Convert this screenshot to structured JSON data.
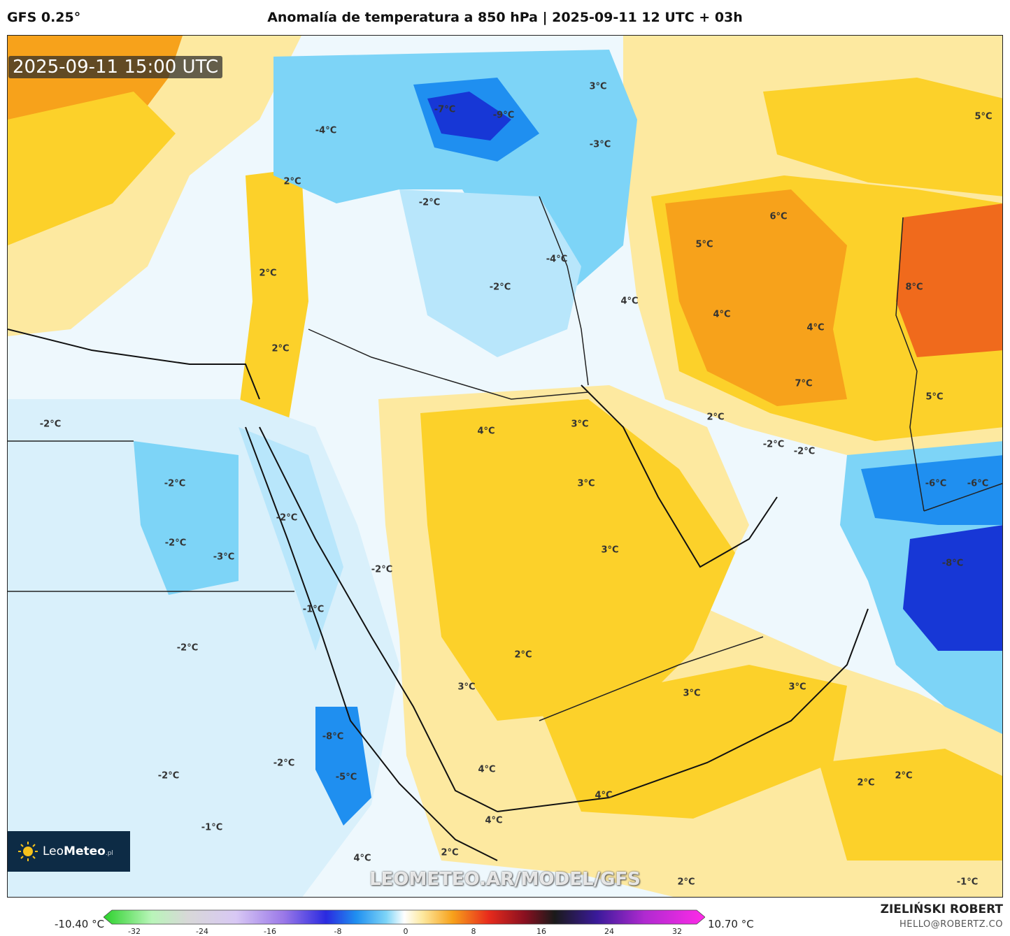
{
  "header": {
    "model": "GFS 0.25°",
    "title": "Anomalía de temperatura a 850 hPa | 2025-09-11 12 UTC + 03h"
  },
  "map": {
    "valid_time": "2025-09-11 15:00 UTC",
    "watermark": "LEOMETEO.AR/MODEL/GFS",
    "labels": [
      {
        "text": "-7°C"
      },
      {
        "text": "-9°C"
      },
      {
        "text": "-4°C"
      },
      {
        "text": "3°C"
      },
      {
        "text": "-3°C"
      },
      {
        "text": "5°C"
      },
      {
        "text": "2°C"
      },
      {
        "text": "-2°C"
      },
      {
        "text": "6°C"
      },
      {
        "text": "5°C"
      },
      {
        "text": "2°C"
      },
      {
        "text": "-4°C"
      },
      {
        "text": "-2°C"
      },
      {
        "text": "4°C"
      },
      {
        "text": "8°C"
      },
      {
        "text": "4°C"
      },
      {
        "text": "4°C"
      },
      {
        "text": "2°C"
      },
      {
        "text": "7°C"
      },
      {
        "text": "5°C"
      },
      {
        "text": "-2°C"
      },
      {
        "text": "4°C"
      },
      {
        "text": "3°C"
      },
      {
        "text": "2°C"
      },
      {
        "text": "-2°C"
      },
      {
        "text": "-2°C"
      },
      {
        "text": "3°C"
      },
      {
        "text": "-6°C"
      },
      {
        "text": "-6°C"
      },
      {
        "text": "-2°C"
      },
      {
        "text": "-2°C"
      },
      {
        "text": "-2°C"
      },
      {
        "text": "-3°C"
      },
      {
        "text": "3°C"
      },
      {
        "text": "-8°C"
      },
      {
        "text": "-2°C"
      },
      {
        "text": "-1°C"
      },
      {
        "text": "-2°C"
      },
      {
        "text": "2°C"
      },
      {
        "text": "3°C"
      },
      {
        "text": "3°C"
      },
      {
        "text": "3°C"
      },
      {
        "text": "-8°C"
      },
      {
        "text": "-2°C"
      },
      {
        "text": "-2°C"
      },
      {
        "text": "-5°C"
      },
      {
        "text": "4°C"
      },
      {
        "text": "2°C"
      },
      {
        "text": "2°C"
      },
      {
        "text": "4°C"
      },
      {
        "text": "4°C"
      },
      {
        "text": "-1°C"
      },
      {
        "text": "4°C"
      },
      {
        "text": "2°C"
      },
      {
        "text": "2°C"
      },
      {
        "text": "-1°C"
      }
    ]
  },
  "logo": {
    "brand_light": "Leo",
    "brand_bold": "Meteo",
    "suffix": ".pl"
  },
  "colorbar": {
    "min_label": "-10.40 °C",
    "max_label": "10.70 °C",
    "ticks": [
      "-32",
      "-24",
      "-16",
      "-8",
      "0",
      "8",
      "16",
      "24",
      "32"
    ]
  },
  "credits": {
    "author": "ZIELIŃSKI ROBERT",
    "email": "HELLO@ROBERTZ.CO"
  },
  "colors": {
    "warm_light": "#fde9a0",
    "warm": "#fcd12a",
    "hot": "#f7a21b",
    "very_hot": "#f06a1c",
    "cold_light": "#d9f0fb",
    "cold": "#7dd4f7",
    "very_cold": "#1f8ff0",
    "extreme_cold": "#1737d6"
  }
}
